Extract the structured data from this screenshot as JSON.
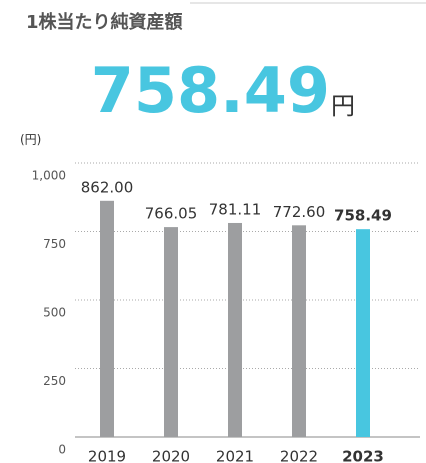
{
  "chart_data": {
    "type": "bar",
    "title": "1株当たり純資産額",
    "headline": "758.49",
    "headline_unit": "円",
    "y_axis_label": "(円)",
    "categories": [
      "2019",
      "2020",
      "2021",
      "2022",
      "2023"
    ],
    "values": [
      862,
      766.05,
      781.11,
      772.6,
      758.49
    ],
    "value_labels": [
      "862.00",
      "766.05",
      "781.11",
      "772.60",
      "758.49"
    ],
    "color": "#9d9ea0",
    "colors": [
      "#9d9ea0",
      "#9d9ea0",
      "#9d9ea0",
      "#9d9ea0",
      "#48c6e0"
    ],
    "ylim": [
      0,
      1000
    ],
    "yticks": [
      0,
      250,
      500,
      750,
      {
        "value": 1000,
        "label": "1,000"
      }
    ],
    "grid": true
  }
}
